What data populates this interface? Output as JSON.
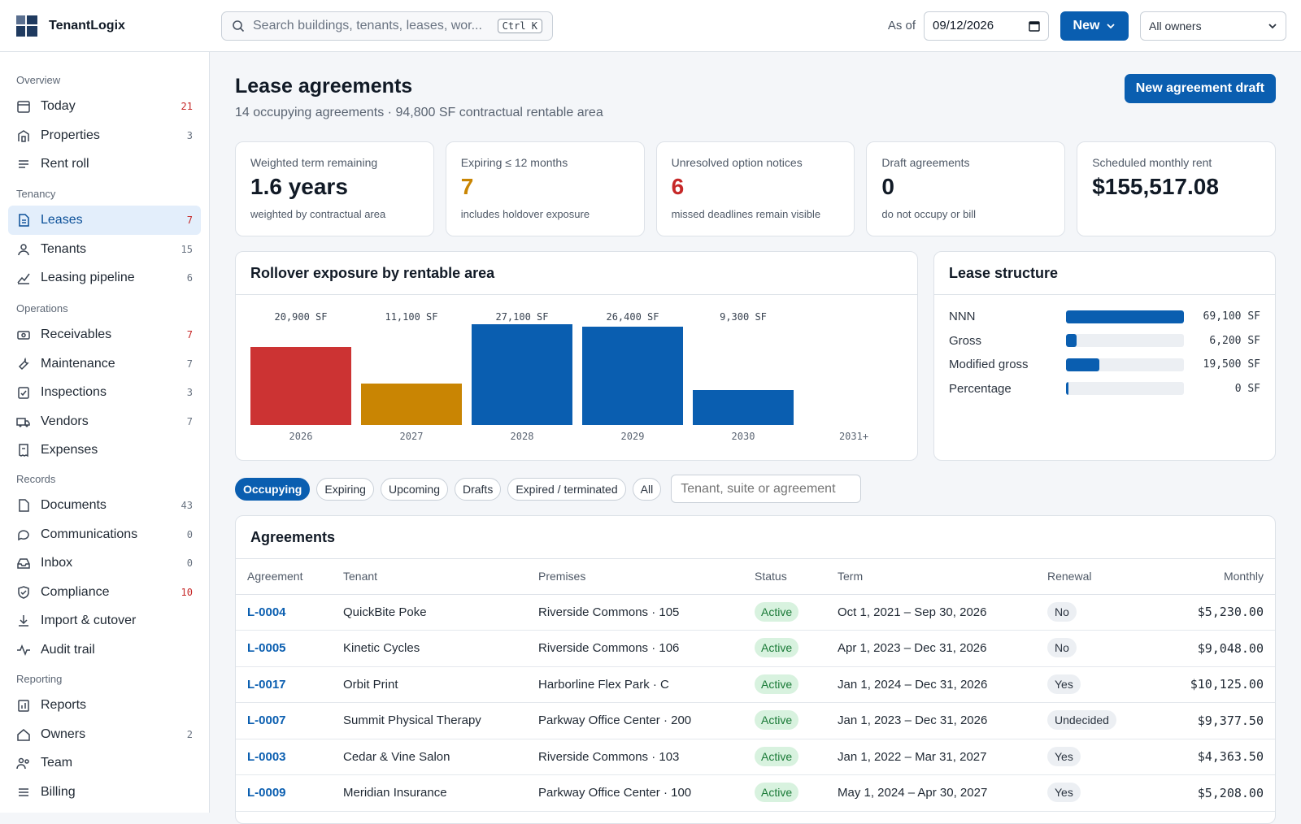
{
  "app": {
    "name": "TenantLogix",
    "search_placeholder": "Search buildings, tenants, leases, wor...",
    "search_shortcut": "Ctrl K",
    "as_of_label": "As of",
    "as_of_date": "09/12/2026",
    "new_label": "New",
    "owner_filter": "All owners"
  },
  "sidebar": [
    {
      "section": "Overview",
      "items": [
        {
          "label": "Today",
          "count": "21",
          "alert": true,
          "icon": "calendar-icon"
        },
        {
          "label": "Properties",
          "count": "3",
          "icon": "building-icon"
        },
        {
          "label": "Rent roll",
          "count": "",
          "icon": "list-icon"
        }
      ]
    },
    {
      "section": "Tenancy",
      "items": [
        {
          "label": "Leases",
          "count": "7",
          "active": true,
          "icon": "document-icon"
        },
        {
          "label": "Tenants",
          "count": "15",
          "icon": "person-icon"
        },
        {
          "label": "Leasing pipeline",
          "count": "6",
          "icon": "chart-icon"
        }
      ]
    },
    {
      "section": "Operations",
      "items": [
        {
          "label": "Receivables",
          "count": "7",
          "alert": true,
          "icon": "cash-icon"
        },
        {
          "label": "Maintenance",
          "count": "7",
          "icon": "wrench-icon"
        },
        {
          "label": "Inspections",
          "count": "3",
          "icon": "checklist-icon"
        },
        {
          "label": "Vendors",
          "count": "7",
          "icon": "truck-icon"
        },
        {
          "label": "Expenses",
          "count": "",
          "icon": "receipt-icon"
        }
      ]
    },
    {
      "section": "Records",
      "items": [
        {
          "label": "Documents",
          "count": "43",
          "icon": "file-icon"
        },
        {
          "label": "Communications",
          "count": "0",
          "icon": "chat-icon"
        },
        {
          "label": "Inbox",
          "count": "0",
          "icon": "inbox-icon"
        },
        {
          "label": "Compliance",
          "count": "10",
          "alert": true,
          "icon": "shield-icon"
        },
        {
          "label": "Import & cutover",
          "count": "",
          "icon": "download-icon"
        },
        {
          "label": "Audit trail",
          "count": "",
          "icon": "activity-icon"
        }
      ]
    },
    {
      "section": "Reporting",
      "items": [
        {
          "label": "Reports",
          "count": "",
          "icon": "report-icon"
        },
        {
          "label": "Owners",
          "count": "2",
          "icon": "home-icon"
        },
        {
          "label": "Team",
          "count": "",
          "icon": "team-icon"
        },
        {
          "label": "Billing",
          "count": "",
          "icon": "billing-icon"
        }
      ]
    }
  ],
  "page": {
    "title": "Lease agreements",
    "subtitle": "14 occupying agreements · 94,800 SF contractual rentable area",
    "draft_button": "New agreement draft"
  },
  "kpis": [
    {
      "label": "Weighted term remaining",
      "value": "1.6 years",
      "sub": "weighted by contractual area",
      "tone": ""
    },
    {
      "label": "Expiring ≤ 12 months",
      "value": "7",
      "sub": "includes holdover exposure",
      "tone": "amber"
    },
    {
      "label": "Unresolved option notices",
      "value": "6",
      "sub": "missed deadlines remain visible",
      "tone": "red"
    },
    {
      "label": "Draft agreements",
      "value": "0",
      "sub": "do not occupy or bill",
      "tone": ""
    },
    {
      "label": "Scheduled monthly rent",
      "value": "$155,517.08",
      "sub": "",
      "tone": ""
    }
  ],
  "rollover": {
    "title": "Rollover exposure by rentable area"
  },
  "chart_data": {
    "type": "bar",
    "title": "Rollover exposure by rentable area",
    "categories": [
      "2026",
      "2027",
      "2028",
      "2029",
      "2030",
      "2031+"
    ],
    "values": [
      20900,
      11100,
      27100,
      26400,
      9300,
      0
    ],
    "data_labels": [
      "20,900 SF",
      "11,100 SF",
      "27,100 SF",
      "26,400 SF",
      "9,300 SF",
      ""
    ],
    "colors": [
      "#cc3333",
      "#c98503",
      "#0a5eb0",
      "#0a5eb0",
      "#0a5eb0",
      "#0a5eb0"
    ],
    "ylim": [
      0,
      27100
    ],
    "grid": false
  },
  "structure": {
    "title": "Lease structure",
    "max": 69100,
    "rows": [
      {
        "name": "NNN",
        "value": 69100,
        "label": "69,100 SF"
      },
      {
        "name": "Gross",
        "value": 6200,
        "label": "6,200 SF"
      },
      {
        "name": "Modified gross",
        "value": 19500,
        "label": "19,500 SF"
      },
      {
        "name": "Percentage",
        "value": 0,
        "label": "0 SF"
      }
    ]
  },
  "filters": {
    "tabs": [
      "Occupying",
      "Expiring",
      "Upcoming",
      "Drafts",
      "Expired / terminated",
      "All"
    ],
    "active": 0,
    "search_placeholder": "Tenant, suite or agreement"
  },
  "agreements": {
    "title": "Agreements",
    "columns": [
      "Agreement",
      "Tenant",
      "Premises",
      "Status",
      "Term",
      "Renewal",
      "Monthly"
    ],
    "rows": [
      {
        "id": "L-0004",
        "tenant": "QuickBite Poke",
        "premises": "Riverside Commons · 105",
        "status": "Active",
        "term": "Oct 1, 2021 – Sep 30, 2026",
        "renewal": "No",
        "monthly": "$5,230.00"
      },
      {
        "id": "L-0005",
        "tenant": "Kinetic Cycles",
        "premises": "Riverside Commons · 106",
        "status": "Active",
        "term": "Apr 1, 2023 – Dec 31, 2026",
        "renewal": "No",
        "monthly": "$9,048.00"
      },
      {
        "id": "L-0017",
        "tenant": "Orbit Print",
        "premises": "Harborline Flex Park · C",
        "status": "Active",
        "term": "Jan 1, 2024 – Dec 31, 2026",
        "renewal": "Yes",
        "monthly": "$10,125.00"
      },
      {
        "id": "L-0007",
        "tenant": "Summit Physical Therapy",
        "premises": "Parkway Office Center · 200",
        "status": "Active",
        "term": "Jan 1, 2023 – Dec 31, 2026",
        "renewal": "Undecided",
        "monthly": "$9,377.50"
      },
      {
        "id": "L-0003",
        "tenant": "Cedar & Vine Salon",
        "premises": "Riverside Commons · 103",
        "status": "Active",
        "term": "Jan 1, 2022 – Mar 31, 2027",
        "renewal": "Yes",
        "monthly": "$4,363.50"
      },
      {
        "id": "L-0009",
        "tenant": "Meridian Insurance",
        "premises": "Parkway Office Center · 100",
        "status": "Active",
        "term": "May 1, 2024 – Apr 30, 2027",
        "renewal": "Yes",
        "monthly": "$5,208.00"
      }
    ]
  }
}
